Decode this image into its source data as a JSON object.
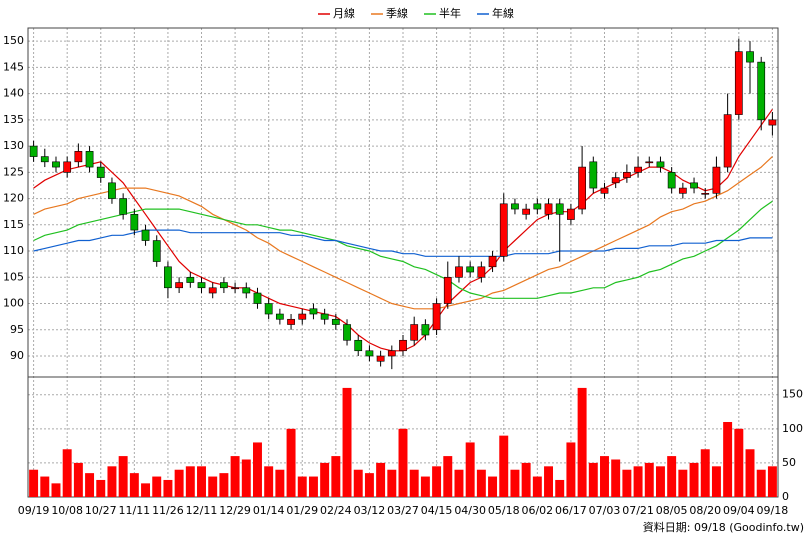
{
  "chart_data": {
    "type": "candlestick",
    "categories": [
      "09/19",
      null,
      null,
      "10/08",
      null,
      null,
      "10/27",
      null,
      null,
      "11/11",
      null,
      null,
      "11/26",
      null,
      null,
      "12/11",
      null,
      null,
      "12/29",
      null,
      null,
      "01/14",
      null,
      null,
      "01/29",
      null,
      null,
      "02/24",
      null,
      null,
      "03/12",
      null,
      null,
      "03/27",
      null,
      null,
      "04/15",
      null,
      null,
      "04/30",
      null,
      null,
      "05/18",
      null,
      null,
      "06/02",
      null,
      null,
      "06/17",
      null,
      null,
      "07/03",
      null,
      null,
      "07/21",
      null,
      null,
      "08/05",
      null,
      null,
      "08/20",
      null,
      null,
      "09/04",
      null,
      null,
      "09/18"
    ],
    "open": [
      130,
      128,
      127,
      125,
      127,
      129,
      126,
      123,
      120,
      117,
      114,
      112,
      107,
      103,
      105,
      104,
      102,
      104,
      103,
      103,
      102,
      100,
      98,
      96,
      97,
      99,
      98,
      97,
      96,
      93,
      91,
      89,
      90,
      91,
      93,
      96,
      95,
      100,
      105,
      107,
      105,
      107,
      109,
      119,
      117,
      119,
      117,
      119,
      116,
      118,
      127,
      121,
      123,
      124,
      125,
      127,
      127,
      125,
      121,
      123,
      121,
      121,
      126,
      136,
      148,
      146,
      134
    ],
    "high": [
      131,
      129.5,
      128,
      128,
      130.5,
      130,
      127,
      124,
      121,
      118,
      115,
      113,
      108,
      105,
      106,
      105,
      104,
      105,
      104,
      104,
      103,
      101,
      99,
      98,
      99,
      100,
      99,
      98,
      97,
      94,
      92,
      91,
      92,
      94,
      97.5,
      97,
      101,
      108,
      109,
      108,
      108,
      110,
      121,
      120,
      119,
      120,
      120,
      120,
      119,
      130,
      128,
      123,
      125,
      126.5,
      128,
      128,
      128,
      126,
      123,
      124,
      122,
      128,
      140,
      150.5,
      150,
      147,
      136.5
    ],
    "low": [
      127,
      126,
      125,
      124,
      126,
      125,
      123,
      119,
      116,
      113,
      111,
      107,
      101,
      102,
      103,
      102,
      101,
      102,
      102,
      101,
      99,
      97,
      96,
      95,
      96,
      97,
      96,
      95,
      92,
      90,
      89,
      88,
      87.5,
      90,
      92,
      93,
      94,
      99,
      104,
      105,
      104,
      106,
      108,
      117,
      116,
      117,
      116,
      108,
      115,
      117,
      121,
      120,
      122,
      123,
      124,
      126,
      125,
      121,
      120,
      121,
      120,
      120,
      125,
      135,
      140,
      133,
      132
    ],
    "close": [
      128,
      127,
      126,
      127,
      129,
      126,
      124,
      120,
      117,
      114,
      112,
      108,
      103,
      104,
      104,
      103,
      103,
      103,
      103,
      102,
      100,
      98,
      97,
      97,
      98,
      98,
      97,
      96,
      93,
      91,
      90,
      90,
      91,
      93,
      96,
      94,
      100,
      105,
      107,
      106,
      107,
      109,
      119,
      118,
      118,
      118,
      119,
      117,
      118,
      126,
      122,
      122,
      124,
      125,
      126,
      127,
      126,
      122,
      122,
      122,
      121,
      126,
      136,
      148,
      146,
      135,
      135
    ],
    "up_color": "#ff0000",
    "down_color": "#00b000",
    "series": [
      {
        "name": "月線",
        "color": "#e00000",
        "values": [
          122,
          123.5,
          124.5,
          125.5,
          126,
          126.5,
          127,
          125,
          123,
          120,
          117,
          114,
          111,
          108,
          106,
          105,
          104,
          103.5,
          103,
          103,
          102,
          101,
          100,
          99.5,
          99,
          98.5,
          98,
          97.5,
          96,
          94,
          92.5,
          91.5,
          91,
          91,
          92,
          94,
          97,
          100,
          102,
          104,
          105,
          107,
          110,
          112,
          114,
          116,
          117,
          117.5,
          117.5,
          119,
          121,
          122,
          123,
          124,
          125,
          126,
          126,
          125,
          123.5,
          122.5,
          121.5,
          122,
          124,
          128,
          131,
          134,
          137
        ]
      },
      {
        "name": "季線",
        "color": "#e87820",
        "values": [
          117,
          118,
          118.5,
          119,
          120,
          120.5,
          121,
          121.5,
          122,
          122,
          122,
          121.5,
          121,
          120.5,
          119.5,
          118.5,
          117,
          116,
          115,
          114,
          112.5,
          111.5,
          110,
          109,
          108,
          107,
          106,
          105,
          104,
          103,
          102,
          101,
          100,
          99.5,
          99,
          99,
          99,
          99.5,
          100,
          100.5,
          101,
          102,
          102.5,
          103.5,
          104.5,
          105.5,
          106.5,
          107,
          108,
          109,
          110,
          111,
          112,
          113,
          114,
          115,
          116.5,
          117.5,
          118,
          119,
          119.5,
          120.5,
          121.5,
          123,
          124.5,
          126,
          128
        ]
      },
      {
        "name": "半年",
        "color": "#20c020",
        "values": [
          112,
          113,
          113.5,
          114,
          115,
          115.5,
          116,
          116.5,
          117,
          117.5,
          118,
          118,
          118,
          118,
          117.5,
          117,
          116.5,
          116,
          115.5,
          115,
          115,
          114.5,
          114,
          114,
          113.5,
          113,
          112.5,
          112,
          111,
          110.5,
          110,
          109,
          108.5,
          108,
          107,
          106.5,
          105.5,
          104.5,
          103,
          102,
          101.5,
          101,
          101,
          101,
          101,
          101,
          101.5,
          102,
          102,
          102.5,
          103,
          103,
          104,
          104.5,
          105,
          106,
          106.5,
          107.5,
          108.5,
          109,
          110,
          111,
          112.5,
          114,
          116,
          118,
          119.5
        ]
      },
      {
        "name": "年線",
        "color": "#1060d0",
        "values": [
          110,
          110.5,
          111,
          111.5,
          112,
          112,
          112.5,
          113,
          113,
          113.5,
          114,
          114,
          114,
          114,
          113.5,
          113.5,
          113.5,
          113.5,
          113.5,
          113.5,
          113.5,
          113.5,
          113.5,
          113,
          113,
          112.5,
          112,
          112,
          111.5,
          111,
          110.5,
          110,
          110,
          109.5,
          109.5,
          109,
          109,
          109,
          109,
          109,
          109,
          109,
          109,
          109.5,
          109.5,
          109.5,
          109.5,
          110,
          110,
          110,
          110,
          110,
          110.5,
          110.5,
          110.5,
          111,
          111,
          111,
          111.5,
          111.5,
          111.5,
          112,
          112,
          112,
          112.5,
          112.5,
          112.5
        ]
      }
    ],
    "ylim": [
      86,
      152.5
    ],
    "yticks": [
      90,
      95,
      100,
      105,
      110,
      115,
      120,
      125,
      130,
      135,
      140,
      145,
      150
    ],
    "volume": {
      "color": "#ff0000",
      "values": [
        40,
        30,
        20,
        70,
        50,
        35,
        25,
        45,
        60,
        35,
        20,
        30,
        25,
        40,
        45,
        45,
        30,
        35,
        60,
        55,
        80,
        45,
        40,
        100,
        30,
        30,
        50,
        60,
        160,
        40,
        35,
        50,
        40,
        100,
        40,
        30,
        45,
        60,
        40,
        80,
        40,
        30,
        90,
        40,
        50,
        30,
        45,
        25,
        80,
        160,
        50,
        60,
        55,
        40,
        45,
        50,
        45,
        60,
        40,
        50,
        70,
        45,
        110,
        100,
        70,
        40,
        45
      ]
    },
    "y2lim": [
      0,
      176
    ],
    "y2ticks": [
      0,
      50,
      100,
      150
    ],
    "grid": true,
    "footnote": "資料日期: 09/18 (Goodinfo.tw)"
  }
}
